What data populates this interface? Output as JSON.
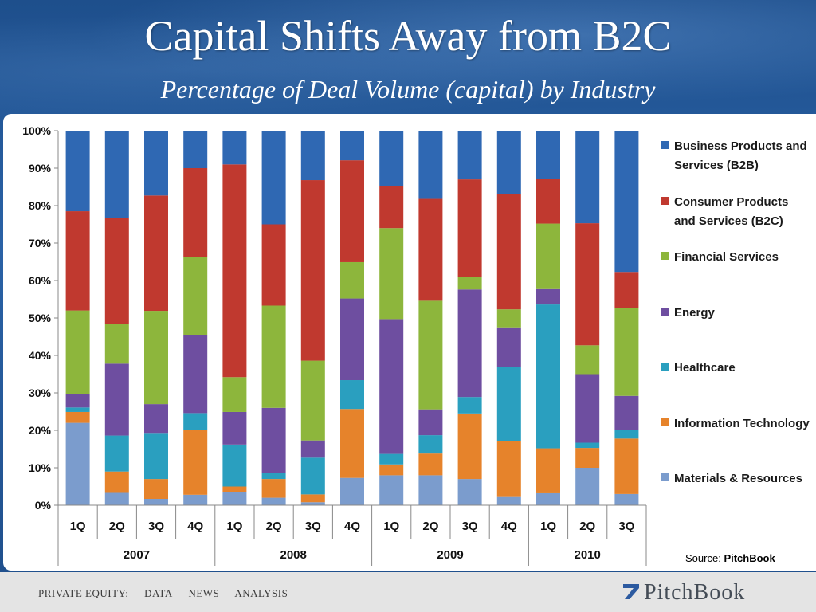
{
  "header": {
    "title": "Capital Shifts Away from B2C",
    "subtitle": "Percentage of Deal Volume (capital) by Industry"
  },
  "footer": {
    "nav": [
      "PRIVATE EQUITY:",
      "DATA",
      "NEWS",
      "ANALYSIS"
    ],
    "brand": "PitchBook"
  },
  "source": {
    "prefix": "Source:",
    "name": "PitchBook"
  },
  "chart_data": {
    "type": "bar",
    "stacked": true,
    "percent": true,
    "yticks": [
      "0%",
      "10%",
      "20%",
      "30%",
      "40%",
      "50%",
      "60%",
      "70%",
      "80%",
      "90%",
      "100%"
    ],
    "ylim": [
      0,
      100
    ],
    "grid": false,
    "legend_position": "right",
    "categories": [
      "1Q",
      "2Q",
      "3Q",
      "4Q",
      "1Q",
      "2Q",
      "3Q",
      "4Q",
      "1Q",
      "2Q",
      "3Q",
      "4Q",
      "1Q",
      "2Q",
      "3Q"
    ],
    "groups": [
      {
        "label": "2007",
        "count": 4
      },
      {
        "label": "2008",
        "count": 4
      },
      {
        "label": "2009",
        "count": 4
      },
      {
        "label": "2010",
        "count": 3
      }
    ],
    "series": [
      {
        "name": "Materials & Resources",
        "color": "#7b9ccd",
        "values": [
          22,
          3.3,
          1.7,
          2.8,
          3.5,
          2,
          0.8,
          7.3,
          8,
          8,
          7,
          2.2,
          3.2,
          10,
          3
        ]
      },
      {
        "name": "Information Technology",
        "color": "#e6832b",
        "values": [
          2.9,
          5.7,
          5.3,
          17.2,
          1.5,
          5,
          2.1,
          18.4,
          2.9,
          5.8,
          17.5,
          15,
          12,
          5.3,
          14.8
        ]
      },
      {
        "name": "Healthcare",
        "color": "#2a9fbf",
        "values": [
          1.2,
          9.6,
          12.3,
          4.6,
          11.2,
          1.7,
          9.8,
          7.7,
          2.8,
          4.9,
          4.4,
          19.8,
          38.4,
          1.4,
          2.4
        ]
      },
      {
        "name": "Energy",
        "color": "#6e4ea0",
        "values": [
          3.6,
          19.2,
          7.7,
          20.8,
          8.7,
          17.3,
          4.6,
          21.8,
          36,
          6.9,
          28.7,
          10.5,
          4.1,
          18.3,
          9
        ]
      },
      {
        "name": "Financial Services",
        "color": "#8db63c",
        "values": [
          22.3,
          10.7,
          24.9,
          20.9,
          9.3,
          27.3,
          21.3,
          9.7,
          24.3,
          29,
          3.4,
          4.8,
          17.5,
          7.7,
          23.5
        ]
      },
      {
        "name": "Consumer Products and Services (B2C)",
        "color": "#c0392f",
        "values": [
          26.5,
          28.3,
          30.8,
          23.7,
          56.8,
          21.7,
          48.2,
          27.2,
          11.2,
          27.2,
          26,
          30.8,
          12,
          32.6,
          9.6
        ]
      },
      {
        "name": "Business Products and Services (B2B)",
        "color": "#2f68b3",
        "values": [
          21.5,
          23.2,
          17.3,
          10,
          9,
          25,
          13.2,
          7.9,
          14.8,
          18.2,
          13,
          16.9,
          12.8,
          24.7,
          37.7
        ]
      }
    ],
    "legend_order": [
      6,
      5,
      4,
      3,
      2,
      1,
      0
    ]
  }
}
